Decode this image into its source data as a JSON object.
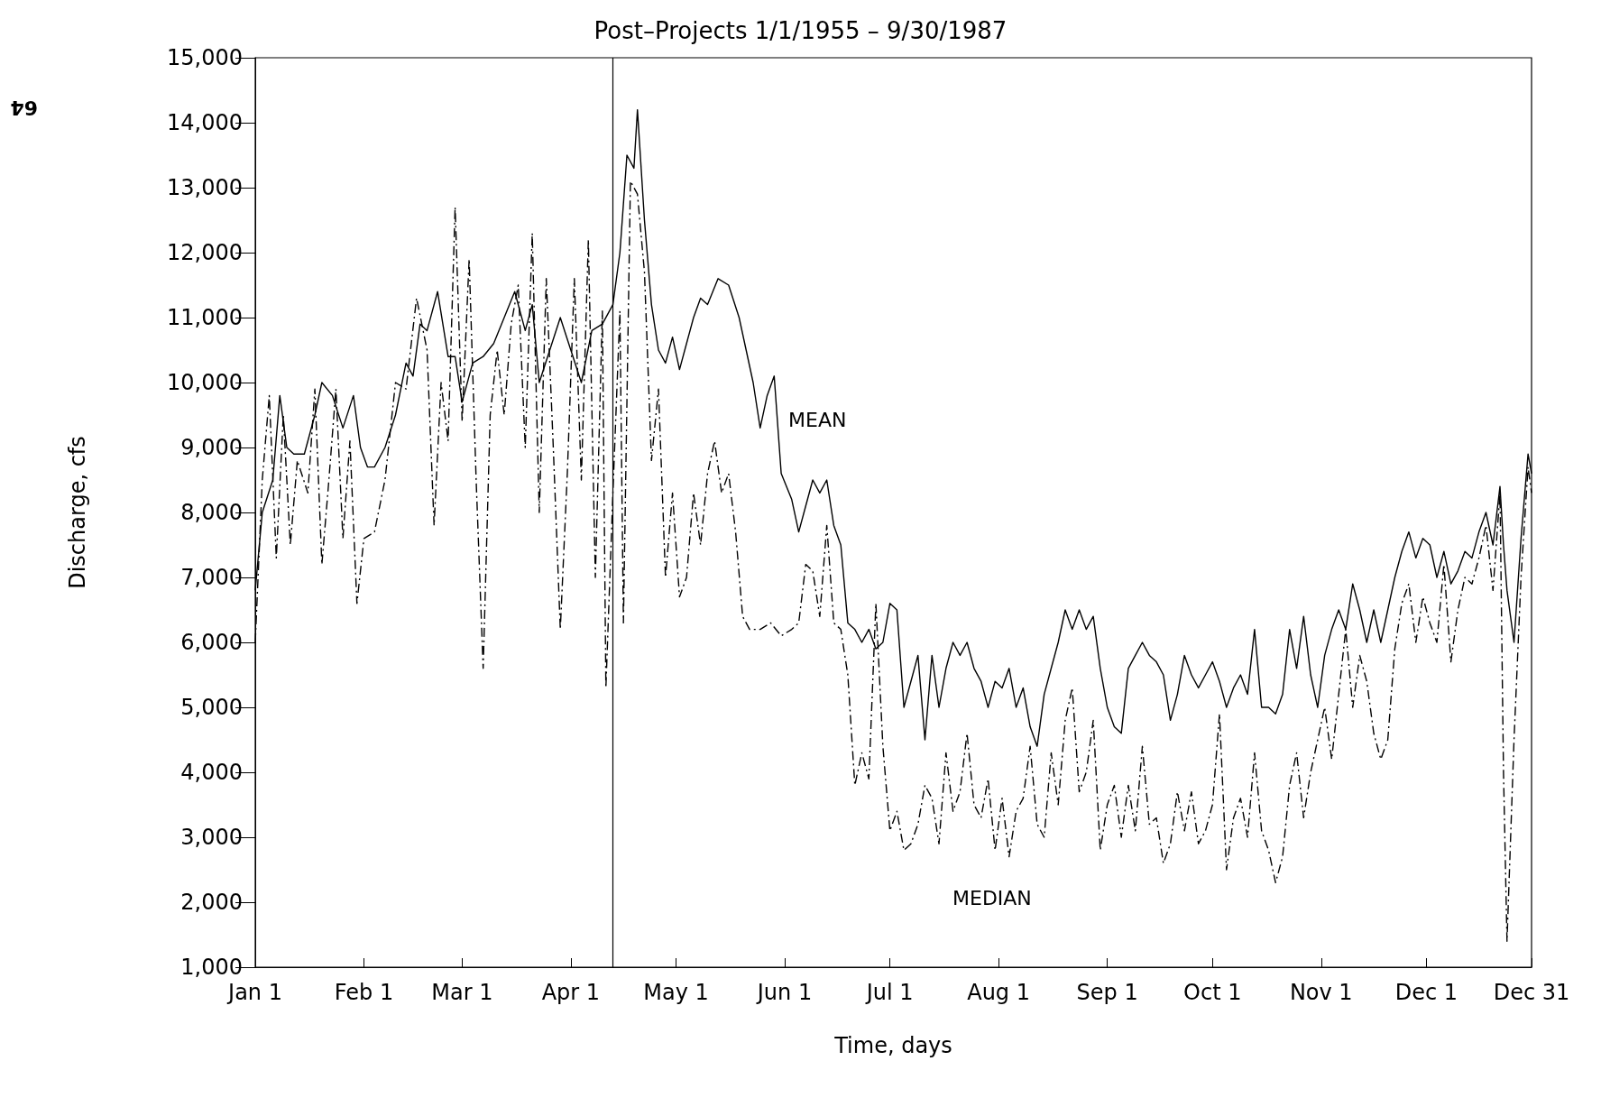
{
  "chart_data": {
    "type": "line",
    "title": "Post–Projects 1/1/1955 – 9/30/1987",
    "xlabel": "Time, days",
    "ylabel": "Discharge, cfs",
    "xlim": [
      "--01-01",
      "--12-31"
    ],
    "xticks": [
      {
        "value": "--01-01",
        "label": "Jan 1"
      },
      {
        "value": "--02-01",
        "label": "Feb 1"
      },
      {
        "value": "--03-01",
        "label": "Mar 1"
      },
      {
        "value": "--04-01",
        "label": "Apr 1"
      },
      {
        "value": "--05-01",
        "label": "May 1"
      },
      {
        "value": "--06-01",
        "label": "Jun 1"
      },
      {
        "value": "--07-01",
        "label": "Jul 1"
      },
      {
        "value": "--08-01",
        "label": "Aug 1"
      },
      {
        "value": "--09-01",
        "label": "Sep 1"
      },
      {
        "value": "--10-01",
        "label": "Oct 1"
      },
      {
        "value": "--11-01",
        "label": "Nov 1"
      },
      {
        "value": "--12-01",
        "label": "Dec 1"
      },
      {
        "value": "--12-31",
        "label": "Dec 31"
      }
    ],
    "ylim": [
      1000,
      15000
    ],
    "yticks": [
      {
        "value": 1000,
        "label": "1,000"
      },
      {
        "value": 2000,
        "label": "2,000"
      },
      {
        "value": 3000,
        "label": "3,000"
      },
      {
        "value": 4000,
        "label": "4,000"
      },
      {
        "value": 5000,
        "label": "5,000"
      },
      {
        "value": 6000,
        "label": "6,000"
      },
      {
        "value": 7000,
        "label": "7,000"
      },
      {
        "value": 8000,
        "label": "8,000"
      },
      {
        "value": 9000,
        "label": "9,000"
      },
      {
        "value": 10000,
        "label": "10,000"
      },
      {
        "value": 11000,
        "label": "11,000"
      },
      {
        "value": 12000,
        "label": "12,000"
      },
      {
        "value": 13000,
        "label": "13,000"
      },
      {
        "value": 14000,
        "label": "14,000"
      },
      {
        "value": 15000,
        "label": "15,000"
      }
    ],
    "grid": false,
    "marker": "none",
    "ref_lines": [
      {
        "axis": "x",
        "value": "--04-13",
        "label": null,
        "color": "#000000"
      }
    ],
    "annotations": [
      "64",
      "MEAN",
      "MEDIAN"
    ],
    "series": [
      {
        "color": "#000000",
        "line_style": "solid",
        "x": [
          "--01-01",
          "--01-03",
          "--01-06",
          "--01-08",
          "--01-10",
          "--01-12",
          "--01-15",
          "--01-18",
          "--01-20",
          "--01-23",
          "--01-26",
          "--01-29",
          "--01-31",
          "--02-02",
          "--02-04",
          "--02-07",
          "--02-10",
          "--02-13",
          "--02-15",
          "--02-17",
          "--02-19",
          "--02-22",
          "--02-25",
          "--02-27",
          "--03-01",
          "--03-04",
          "--03-07",
          "--03-10",
          "--03-13",
          "--03-16",
          "--03-19",
          "--03-21",
          "--03-23",
          "--03-26",
          "--03-29",
          "--04-01",
          "--04-04",
          "--04-07",
          "--04-10",
          "--04-13",
          "--04-15",
          "--04-17",
          "--04-19",
          "--04-20",
          "--04-22",
          "--04-24",
          "--04-26",
          "--04-28",
          "--04-30",
          "--05-02",
          "--05-04",
          "--05-06",
          "--05-08",
          "--05-10",
          "--05-13",
          "--05-16",
          "--05-19",
          "--05-21",
          "--05-23",
          "--05-25",
          "--05-27",
          "--05-29",
          "--05-31",
          "--06-03",
          "--06-05",
          "--06-07",
          "--06-09",
          "--06-11",
          "--06-13",
          "--06-15",
          "--06-17",
          "--06-19",
          "--06-21",
          "--06-23",
          "--06-25",
          "--06-27",
          "--06-29",
          "--07-01",
          "--07-03",
          "--07-05",
          "--07-07",
          "--07-09",
          "--07-11",
          "--07-13",
          "--07-15",
          "--07-17",
          "--07-19",
          "--07-21",
          "--07-23",
          "--07-25",
          "--07-27",
          "--07-29",
          "--07-31",
          "--08-02",
          "--08-04",
          "--08-06",
          "--08-08",
          "--08-10",
          "--08-12",
          "--08-14",
          "--08-16",
          "--08-18",
          "--08-20",
          "--08-22",
          "--08-24",
          "--08-26",
          "--08-28",
          "--08-30",
          "--09-01",
          "--09-03",
          "--09-05",
          "--09-07",
          "--09-09",
          "--09-11",
          "--09-13",
          "--09-15",
          "--09-17",
          "--09-19",
          "--09-21",
          "--09-23",
          "--09-25",
          "--09-27",
          "--09-29",
          "--10-01",
          "--10-03",
          "--10-05",
          "--10-07",
          "--10-09",
          "--10-11",
          "--10-13",
          "--10-15",
          "--10-17",
          "--10-19",
          "--10-21",
          "--10-23",
          "--10-25",
          "--10-27",
          "--10-29",
          "--10-31",
          "--11-02",
          "--11-04",
          "--11-06",
          "--11-08",
          "--11-10",
          "--11-12",
          "--11-14",
          "--11-16",
          "--11-18",
          "--11-20",
          "--11-22",
          "--11-24",
          "--11-26",
          "--11-28",
          "--11-30",
          "--12-02",
          "--12-04",
          "--12-06",
          "--12-08",
          "--12-10",
          "--12-12",
          "--12-14",
          "--12-16",
          "--12-18",
          "--12-20",
          "--12-22",
          "--12-23",
          "--12-24",
          "--12-26",
          "--12-28",
          "--12-30",
          "--12-31"
        ],
        "values": [
          6800,
          8000,
          8500,
          9800,
          9000,
          8900,
          8900,
          9500,
          10000,
          9800,
          9300,
          9800,
          9000,
          8700,
          8700,
          9000,
          9500,
          10300,
          10100,
          10900,
          10800,
          11400,
          10400,
          10400,
          9700,
          10300,
          10400,
          10600,
          11000,
          11400,
          10800,
          11200,
          10000,
          10500,
          11000,
          10500,
          10000,
          10800,
          10900,
          11200,
          12000,
          13500,
          13300,
          14200,
          12500,
          11200,
          10500,
          10300,
          10700,
          10200,
          10600,
          11000,
          11300,
          11200,
          11600,
          11500,
          11000,
          10500,
          10000,
          9300,
          9800,
          10100,
          8600,
          8200,
          7700,
          8100,
          8500,
          8300,
          8500,
          7800,
          7500,
          6300,
          6200,
          6000,
          6200,
          5900,
          6000,
          6600,
          6500,
          5000,
          5400,
          5800,
          4500,
          5800,
          5000,
          5600,
          6000,
          5800,
          6000,
          5600,
          5400,
          5000,
          5400,
          5300,
          5600,
          5000,
          5300,
          4700,
          4400,
          5200,
          5600,
          6000,
          6500,
          6200,
          6500,
          6200,
          6400,
          5600,
          5000,
          4700,
          4600,
          5600,
          5800,
          6000,
          5800,
          5700,
          5500,
          4800,
          5200,
          5800,
          5500,
          5300,
          5500,
          5700,
          5400,
          5000,
          5300,
          5500,
          5200,
          6200,
          5000,
          5000,
          4900,
          5200,
          6200,
          5600,
          6400,
          5500,
          5000,
          5800,
          6200,
          6500,
          6200,
          6900,
          6500,
          6000,
          6500,
          6000,
          6500,
          7000,
          7400,
          7700,
          7300,
          7600,
          7500,
          7000,
          7400,
          6900,
          7100,
          7400,
          7300,
          7700,
          8000,
          7500,
          8400,
          7500,
          6800,
          6000,
          7600,
          8900,
          8600
        ]
      },
      {
        "color": "#000000",
        "line_style": "dashed",
        "x": [
          "--01-01",
          "--01-03",
          "--01-05",
          "--01-07",
          "--01-09",
          "--01-11",
          "--01-13",
          "--01-16",
          "--01-18",
          "--01-20",
          "--01-22",
          "--01-24",
          "--01-26",
          "--01-28",
          "--01-30",
          "--02-01",
          "--02-04",
          "--02-07",
          "--02-10",
          "--02-13",
          "--02-16",
          "--02-19",
          "--02-21",
          "--02-23",
          "--02-25",
          "--02-27",
          "--03-01",
          "--03-03",
          "--03-05",
          "--03-07",
          "--03-09",
          "--03-11",
          "--03-13",
          "--03-15",
          "--03-17",
          "--03-19",
          "--03-21",
          "--03-23",
          "--03-25",
          "--03-27",
          "--03-29",
          "--03-31",
          "--04-02",
          "--04-04",
          "--04-06",
          "--04-08",
          "--04-10",
          "--04-11",
          "--04-13",
          "--04-15",
          "--04-16",
          "--04-18",
          "--04-20",
          "--04-22",
          "--04-24",
          "--04-26",
          "--04-28",
          "--04-30",
          "--05-02",
          "--05-04",
          "--05-06",
          "--05-08",
          "--05-10",
          "--05-12",
          "--05-14",
          "--05-16",
          "--05-18",
          "--05-20",
          "--05-22",
          "--05-25",
          "--05-28",
          "--05-31",
          "--06-03",
          "--06-05",
          "--06-07",
          "--06-09",
          "--06-11",
          "--06-13",
          "--06-15",
          "--06-17",
          "--06-19",
          "--06-21",
          "--06-23",
          "--06-25",
          "--06-27",
          "--06-29",
          "--07-01",
          "--07-03",
          "--07-05",
          "--07-07",
          "--07-09",
          "--07-11",
          "--07-13",
          "--07-15",
          "--07-17",
          "--07-19",
          "--07-21",
          "--07-23",
          "--07-25",
          "--07-27",
          "--07-29",
          "--07-31",
          "--08-02",
          "--08-04",
          "--08-06",
          "--08-08",
          "--08-10",
          "--08-12",
          "--08-14",
          "--08-16",
          "--08-18",
          "--08-20",
          "--08-22",
          "--08-24",
          "--08-26",
          "--08-28",
          "--08-30",
          "--09-01",
          "--09-03",
          "--09-05",
          "--09-07",
          "--09-09",
          "--09-11",
          "--09-13",
          "--09-15",
          "--09-17",
          "--09-19",
          "--09-21",
          "--09-23",
          "--09-25",
          "--09-27",
          "--09-29",
          "--10-01",
          "--10-03",
          "--10-05",
          "--10-07",
          "--10-09",
          "--10-11",
          "--10-13",
          "--10-15",
          "--10-17",
          "--10-19",
          "--10-21",
          "--10-23",
          "--10-25",
          "--10-27",
          "--10-29",
          "--10-31",
          "--11-02",
          "--11-04",
          "--11-06",
          "--11-08",
          "--11-10",
          "--11-12",
          "--11-14",
          "--11-16",
          "--11-18",
          "--11-20",
          "--11-22",
          "--11-24",
          "--11-26",
          "--11-28",
          "--11-30",
          "--12-02",
          "--12-04",
          "--12-06",
          "--12-08",
          "--12-10",
          "--12-12",
          "--12-14",
          "--12-16",
          "--12-18",
          "--12-20",
          "--12-22",
          "--12-23",
          "--12-24",
          "--12-26",
          "--12-28",
          "--12-30",
          "--12-31"
        ],
        "values": [
          6000,
          8500,
          9800,
          7300,
          9500,
          7500,
          8800,
          8300,
          9900,
          7200,
          8500,
          9900,
          7600,
          9100,
          6600,
          7600,
          7700,
          8500,
          10000,
          9900,
          11300,
          10500,
          7800,
          10000,
          9100,
          12700,
          9400,
          11900,
          8500,
          5600,
          9500,
          10500,
          9500,
          10900,
          11500,
          9000,
          12300,
          8000,
          11600,
          9000,
          6200,
          8600,
          11600,
          8500,
          12200,
          7000,
          11100,
          5300,
          8300,
          11100,
          6300,
          13100,
          12900,
          11700,
          8800,
          9900,
          7000,
          8300,
          6700,
          7000,
          8300,
          7500,
          8600,
          9100,
          8300,
          8600,
          7700,
          6400,
          6200,
          6200,
          6300,
          6100,
          6200,
          6300,
          7200,
          7100,
          6400,
          7800,
          6300,
          6200,
          5500,
          3800,
          4300,
          3900,
          6600,
          4400,
          3100,
          3400,
          2800,
          2900,
          3200,
          3800,
          3600,
          2900,
          4300,
          3400,
          3700,
          4600,
          3500,
          3300,
          3900,
          2800,
          3600,
          2700,
          3400,
          3600,
          4400,
          3200,
          3000,
          4300,
          3500,
          4800,
          5300,
          3700,
          4000,
          4800,
          2800,
          3500,
          3800,
          3000,
          3800,
          3100,
          4400,
          3200,
          3300,
          2600,
          2900,
          3700,
          3100,
          3700,
          2900,
          3100,
          3500,
          4900,
          2500,
          3300,
          3600,
          3000,
          4300,
          3100,
          2800,
          2300,
          2700,
          3800,
          4300,
          3300,
          4000,
          4500,
          5000,
          4200,
          5200,
          6200,
          5000,
          5800,
          5400,
          4600,
          4200,
          4500,
          5900,
          6600,
          6900,
          6000,
          6700,
          6300,
          6000,
          7200,
          5700,
          6500,
          7000,
          6900,
          7300,
          7800,
          6800,
          8300,
          4000,
          1400,
          4500,
          7000,
          8700,
          8300
        ]
      }
    ]
  }
}
